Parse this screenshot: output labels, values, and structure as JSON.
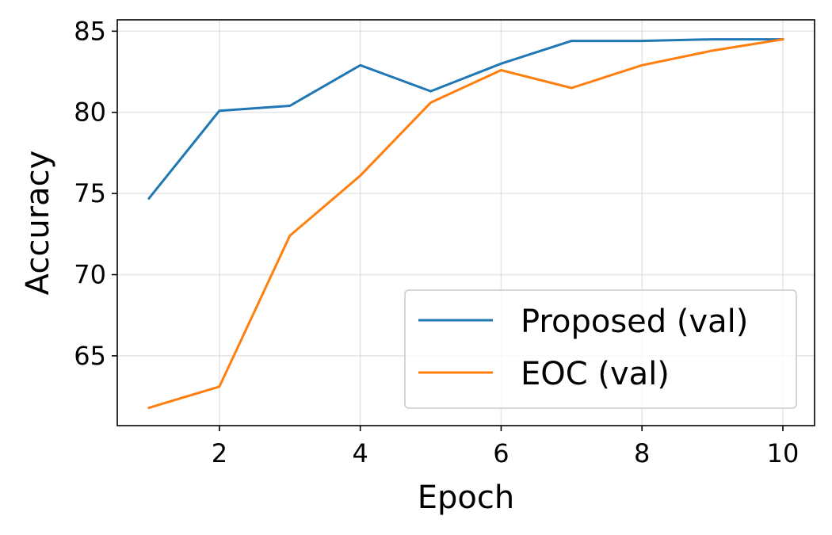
{
  "chart_data": {
    "type": "line",
    "title": "",
    "xlabel": "Epoch",
    "ylabel": "Accuracy",
    "xlim": [
      0.55,
      10.45
    ],
    "ylim": [
      60.7,
      85.7
    ],
    "xticks": [
      2,
      4,
      6,
      8,
      10
    ],
    "yticks": [
      65,
      70,
      75,
      80,
      85
    ],
    "grid": true,
    "legend_position": "lower-right",
    "x": [
      1,
      2,
      3,
      4,
      5,
      6,
      7,
      8,
      9,
      10
    ],
    "series": [
      {
        "name": "Proposed (val)",
        "color": "#1f77b4",
        "values": [
          74.7,
          80.1,
          80.4,
          82.9,
          81.3,
          83.0,
          84.4,
          84.4,
          84.5,
          84.5
        ]
      },
      {
        "name": "EOC (val)",
        "color": "#ff7f0e",
        "values": [
          61.8,
          63.1,
          72.4,
          76.1,
          80.6,
          82.6,
          81.5,
          82.9,
          83.8,
          84.5
        ]
      }
    ]
  }
}
